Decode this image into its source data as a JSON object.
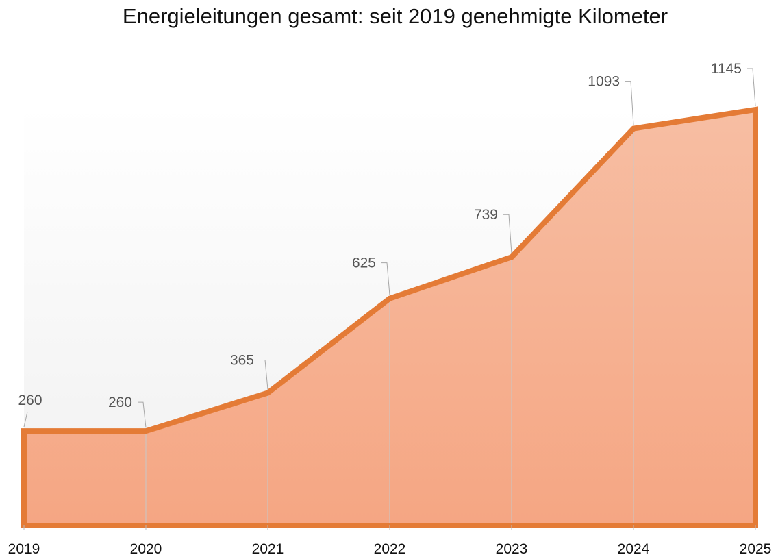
{
  "chart_data": {
    "type": "area",
    "title": "Energieleitungen gesamt: seit 2019 genehmigte Kilometer",
    "xlabel": "",
    "ylabel": "",
    "categories": [
      "2019",
      "2020",
      "2021",
      "2022",
      "2023",
      "2024",
      "2025"
    ],
    "series": [
      {
        "name": "Genehmigte Kilometer",
        "values": [
          260,
          260,
          365,
          625,
          739,
          1093,
          1145
        ],
        "labels": [
          "260",
          "260",
          "365",
          "625",
          "739",
          "1093",
          "1145"
        ]
      }
    ],
    "ylim": [
      0,
      1145
    ],
    "grid": false,
    "legend": "none",
    "colors": {
      "line": "#e47b36",
      "fill_top": "#f7bea3",
      "fill_bottom": "#f5a683",
      "leader": "#a6a6a6"
    }
  }
}
